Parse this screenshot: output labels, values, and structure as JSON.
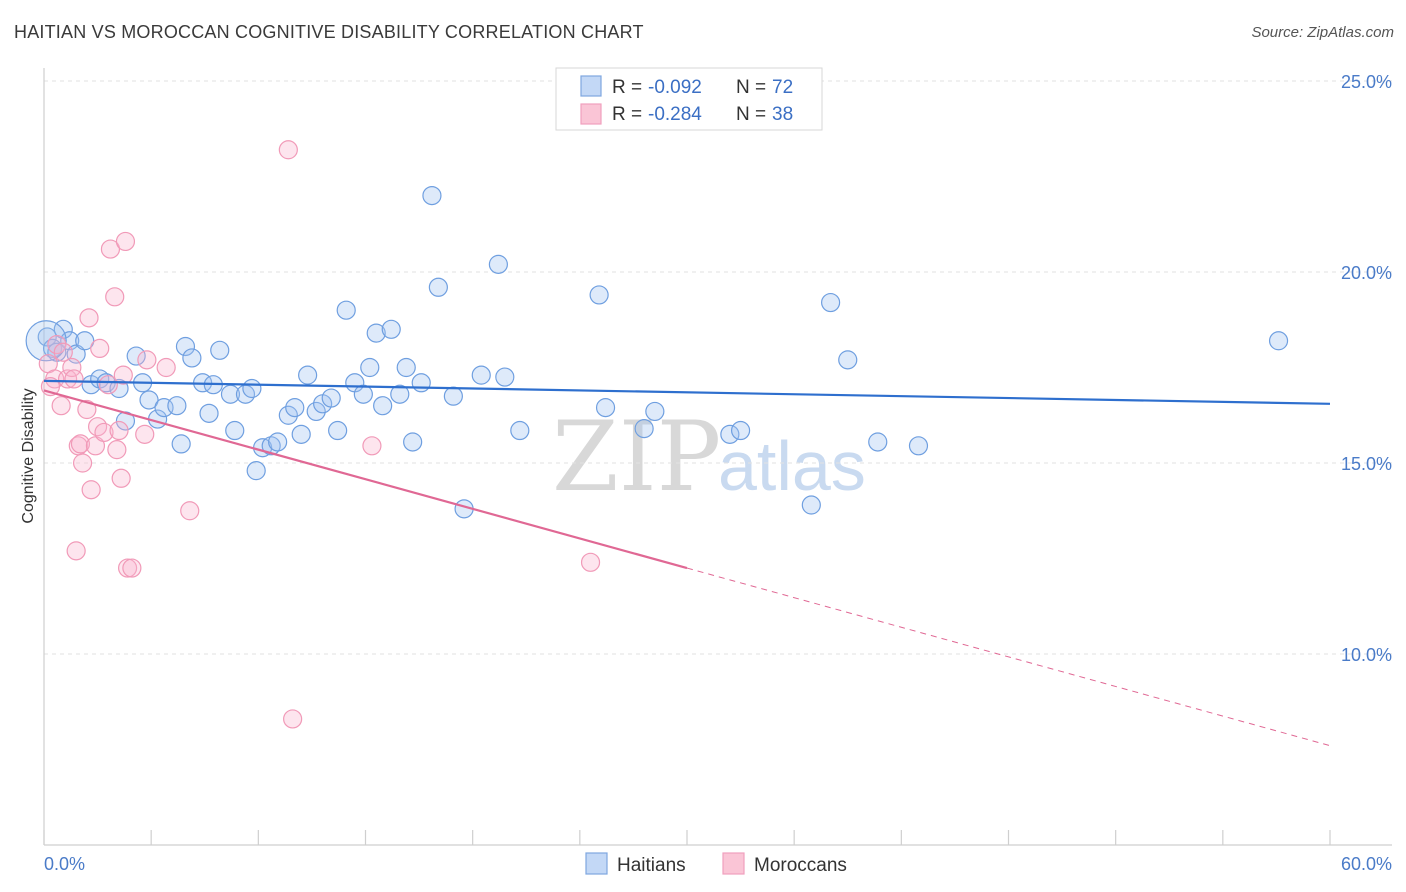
{
  "chart_data": {
    "type": "scatter",
    "title": "HAITIAN VS MOROCCAN COGNITIVE DISABILITY CORRELATION CHART",
    "source": "Source: ZipAtlas.com",
    "ylabel": "Cognitive Disability",
    "xlim": [
      0,
      60
    ],
    "ylim": [
      5,
      26
    ],
    "x_tick_labels": [
      "0.0%",
      "60.0%"
    ],
    "y_ticks": [
      10,
      15,
      20,
      25
    ],
    "y_tick_labels": [
      "10.0%",
      "15.0%",
      "20.0%",
      "25.0%"
    ],
    "watermark": {
      "zip": "ZIP",
      "atlas": "atlas"
    },
    "legend_stats": [
      {
        "r_label": "R =",
        "r_value": "-0.092",
        "n_label": "N =",
        "n_value": "72"
      },
      {
        "r_label": "R =",
        "r_value": "-0.284",
        "n_label": "N =",
        "n_value": "38"
      }
    ],
    "series": [
      {
        "name": "Haitians",
        "color": "#6f9fe0",
        "line_color": "#2e6fce",
        "trend": {
          "x0": 0,
          "y0": 17.15,
          "x1": 60,
          "y1": 16.55,
          "solid_until": 60
        },
        "points": [
          [
            0.15,
            18.3
          ],
          [
            0.4,
            18.0
          ],
          [
            0.6,
            17.9
          ],
          [
            0.9,
            18.5
          ],
          [
            1.2,
            18.2
          ],
          [
            1.5,
            17.85
          ],
          [
            1.9,
            18.2
          ],
          [
            2.2,
            17.05
          ],
          [
            2.6,
            17.2
          ],
          [
            2.9,
            17.1
          ],
          [
            3.5,
            16.95
          ],
          [
            3.8,
            16.1
          ],
          [
            4.3,
            17.8
          ],
          [
            4.6,
            17.1
          ],
          [
            4.9,
            16.65
          ],
          [
            5.3,
            16.15
          ],
          [
            5.6,
            16.45
          ],
          [
            6.2,
            16.5
          ],
          [
            6.4,
            15.5
          ],
          [
            6.6,
            18.05
          ],
          [
            6.9,
            17.75
          ],
          [
            7.4,
            17.1
          ],
          [
            7.7,
            16.3
          ],
          [
            7.9,
            17.05
          ],
          [
            8.2,
            17.95
          ],
          [
            8.7,
            16.8
          ],
          [
            8.9,
            15.85
          ],
          [
            9.4,
            16.8
          ],
          [
            9.7,
            16.95
          ],
          [
            9.9,
            14.8
          ],
          [
            10.2,
            15.4
          ],
          [
            10.6,
            15.45
          ],
          [
            10.9,
            15.55
          ],
          [
            11.4,
            16.25
          ],
          [
            11.7,
            16.45
          ],
          [
            12.0,
            15.75
          ],
          [
            12.3,
            17.3
          ],
          [
            12.7,
            16.35
          ],
          [
            13.0,
            16.55
          ],
          [
            13.4,
            16.7
          ],
          [
            13.7,
            15.85
          ],
          [
            14.1,
            19.0
          ],
          [
            14.5,
            17.1
          ],
          [
            14.9,
            16.8
          ],
          [
            15.2,
            17.5
          ],
          [
            15.5,
            18.4
          ],
          [
            15.8,
            16.5
          ],
          [
            16.2,
            18.5
          ],
          [
            16.6,
            16.8
          ],
          [
            16.9,
            17.5
          ],
          [
            17.2,
            15.55
          ],
          [
            17.6,
            17.1
          ],
          [
            18.1,
            22.0
          ],
          [
            18.4,
            19.6
          ],
          [
            19.1,
            16.75
          ],
          [
            19.6,
            13.8
          ],
          [
            20.4,
            17.3
          ],
          [
            21.2,
            20.2
          ],
          [
            21.5,
            17.25
          ],
          [
            22.2,
            15.85
          ],
          [
            25.9,
            19.4
          ],
          [
            26.2,
            16.45
          ],
          [
            28.0,
            15.9
          ],
          [
            28.5,
            16.35
          ],
          [
            32.0,
            15.75
          ],
          [
            32.5,
            15.85
          ],
          [
            35.8,
            13.9
          ],
          [
            36.7,
            19.2
          ],
          [
            37.5,
            17.7
          ],
          [
            38.9,
            15.55
          ],
          [
            40.8,
            15.45
          ],
          [
            57.6,
            18.2
          ]
        ]
      },
      {
        "name": "Moroccans",
        "color": "#f19ab8",
        "line_color": "#e06894",
        "trend": {
          "x0": 0,
          "y0": 16.9,
          "x1": 60,
          "y1": 7.6,
          "solid_until": 30
        },
        "points": [
          [
            0.2,
            17.6
          ],
          [
            0.5,
            17.2
          ],
          [
            0.6,
            18.1
          ],
          [
            0.8,
            16.5
          ],
          [
            1.1,
            17.2
          ],
          [
            1.3,
            17.5
          ],
          [
            1.4,
            17.2
          ],
          [
            1.5,
            12.7
          ],
          [
            1.6,
            15.45
          ],
          [
            1.7,
            15.5
          ],
          [
            1.8,
            15.0
          ],
          [
            2.0,
            16.4
          ],
          [
            2.1,
            18.8
          ],
          [
            2.2,
            14.3
          ],
          [
            2.4,
            15.45
          ],
          [
            2.5,
            15.95
          ],
          [
            2.6,
            18.0
          ],
          [
            2.8,
            15.8
          ],
          [
            3.0,
            17.05
          ],
          [
            3.1,
            20.6
          ],
          [
            3.3,
            19.35
          ],
          [
            3.4,
            15.35
          ],
          [
            3.5,
            15.85
          ],
          [
            3.6,
            14.6
          ],
          [
            3.7,
            17.3
          ],
          [
            3.8,
            20.8
          ],
          [
            3.9,
            12.25
          ],
          [
            4.1,
            12.25
          ],
          [
            4.7,
            15.75
          ],
          [
            4.8,
            17.7
          ],
          [
            5.7,
            17.5
          ],
          [
            6.8,
            13.75
          ],
          [
            11.4,
            23.2
          ],
          [
            11.6,
            8.3
          ],
          [
            15.3,
            15.45
          ],
          [
            25.5,
            12.4
          ],
          [
            0.3,
            17.0
          ],
          [
            0.9,
            17.9
          ]
        ]
      }
    ]
  }
}
